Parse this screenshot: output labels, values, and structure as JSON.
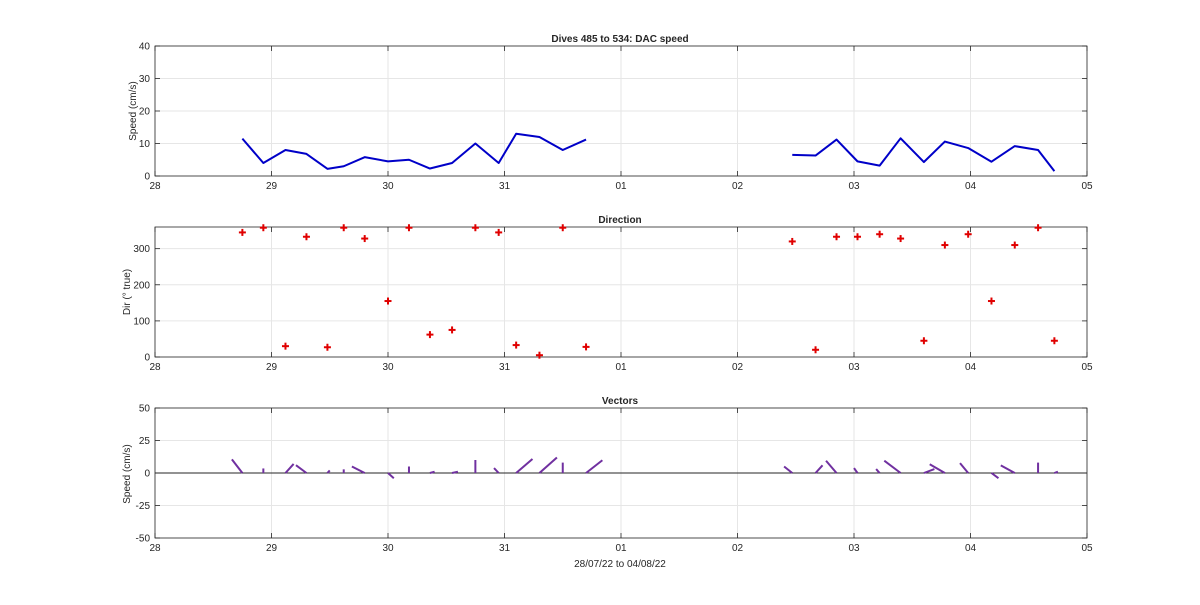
{
  "figure": {
    "xlabel": "28/07/22 to 04/08/22",
    "x_tick_labels": [
      "28",
      "29",
      "30",
      "31",
      "01",
      "02",
      "03",
      "04",
      "05"
    ]
  },
  "colors": {
    "speed_line": "#0000c8",
    "direction_marker": "#e00000",
    "vectors": "#7030a0",
    "grid": "#e6e6e6",
    "axes": "#262626"
  },
  "chart_data": [
    {
      "type": "line",
      "title": "Dives 485 to 534: DAC speed",
      "ylabel": "Speed (cm/s)",
      "xlim": [
        0,
        8
      ],
      "ylim": [
        0,
        40
      ],
      "yticks": [
        0,
        10,
        20,
        30,
        40
      ],
      "grid": true,
      "segments": [
        {
          "x": [
            0.75,
            0.93,
            1.12,
            1.3,
            1.48,
            1.62,
            1.8,
            2.0,
            2.18,
            2.36,
            2.55,
            2.75,
            2.95,
            3.1,
            3.3,
            3.5,
            3.7
          ],
          "y": [
            11.5,
            4.0,
            8.0,
            6.8,
            2.2,
            3.0,
            5.8,
            4.5,
            5.0,
            2.3,
            4.0,
            10.0,
            4.0,
            13.0,
            12.0,
            8.0,
            11.2
          ]
        },
        {
          "x": [
            5.47,
            5.67,
            5.85,
            6.03,
            6.22,
            6.4,
            6.6,
            6.78,
            6.98,
            7.18,
            7.38,
            7.58,
            7.72
          ],
          "y": [
            6.5,
            6.3,
            11.2,
            4.5,
            3.2,
            11.6,
            4.3,
            10.6,
            8.6,
            4.4,
            9.2,
            8.0,
            1.5
          ]
        }
      ]
    },
    {
      "type": "scatter",
      "title": "Direction",
      "ylabel": "Dir (° true)",
      "xlim": [
        0,
        8
      ],
      "ylim": [
        0,
        360
      ],
      "yticks": [
        0,
        100,
        200,
        300
      ],
      "grid": true,
      "x": [
        0.75,
        0.93,
        1.12,
        1.3,
        1.48,
        1.62,
        1.8,
        2.0,
        2.18,
        2.36,
        2.55,
        2.75,
        2.95,
        3.1,
        3.3,
        3.5,
        3.7,
        5.47,
        5.67,
        5.85,
        6.03,
        6.22,
        6.4,
        6.6,
        6.78,
        6.98,
        7.18,
        7.38,
        7.58,
        7.72
      ],
      "y": [
        345,
        358,
        30,
        333,
        27,
        358,
        328,
        155,
        358,
        62,
        75,
        358,
        345,
        33,
        5,
        358,
        28,
        320,
        20,
        333,
        333,
        340,
        328,
        45,
        310,
        340,
        155,
        310,
        358,
        45
      ]
    },
    {
      "type": "line",
      "title": "Vectors",
      "ylabel": "Speed (cm/s)",
      "xlim": [
        0,
        8
      ],
      "ylim": [
        -50,
        50
      ],
      "yticks": [
        -50,
        -25,
        0,
        25,
        50
      ],
      "grid": true,
      "vectors": {
        "x": [
          0.75,
          0.93,
          1.12,
          1.3,
          1.48,
          1.62,
          1.8,
          2.0,
          2.18,
          2.36,
          2.55,
          2.75,
          2.95,
          3.1,
          3.3,
          3.5,
          3.7,
          5.47,
          5.67,
          5.85,
          6.03,
          6.22,
          6.4,
          6.6,
          6.78,
          6.98,
          7.18,
          7.38,
          7.58,
          7.72
        ],
        "u": [
          -0.09,
          0.0,
          0.07,
          -0.09,
          0.02,
          0.0,
          -0.11,
          0.05,
          0.0,
          0.04,
          0.05,
          0.0,
          -0.04,
          0.14,
          0.15,
          0.0,
          0.14,
          -0.07,
          0.06,
          -0.09,
          -0.03,
          -0.03,
          -0.14,
          0.09,
          -0.13,
          -0.07,
          0.06,
          -0.12,
          0.0,
          0.03
        ],
        "v": [
          10.5,
          3.5,
          7.0,
          6.0,
          2.0,
          2.8,
          5.0,
          -4.0,
          5.0,
          1.0,
          1.0,
          10.0,
          3.8,
          10.8,
          11.9,
          8.0,
          9.8,
          5.0,
          5.9,
          9.4,
          3.8,
          3.0,
          9.5,
          3.0,
          6.7,
          7.6,
          -4.0,
          5.9,
          8.0,
          1.0
        ]
      }
    }
  ]
}
